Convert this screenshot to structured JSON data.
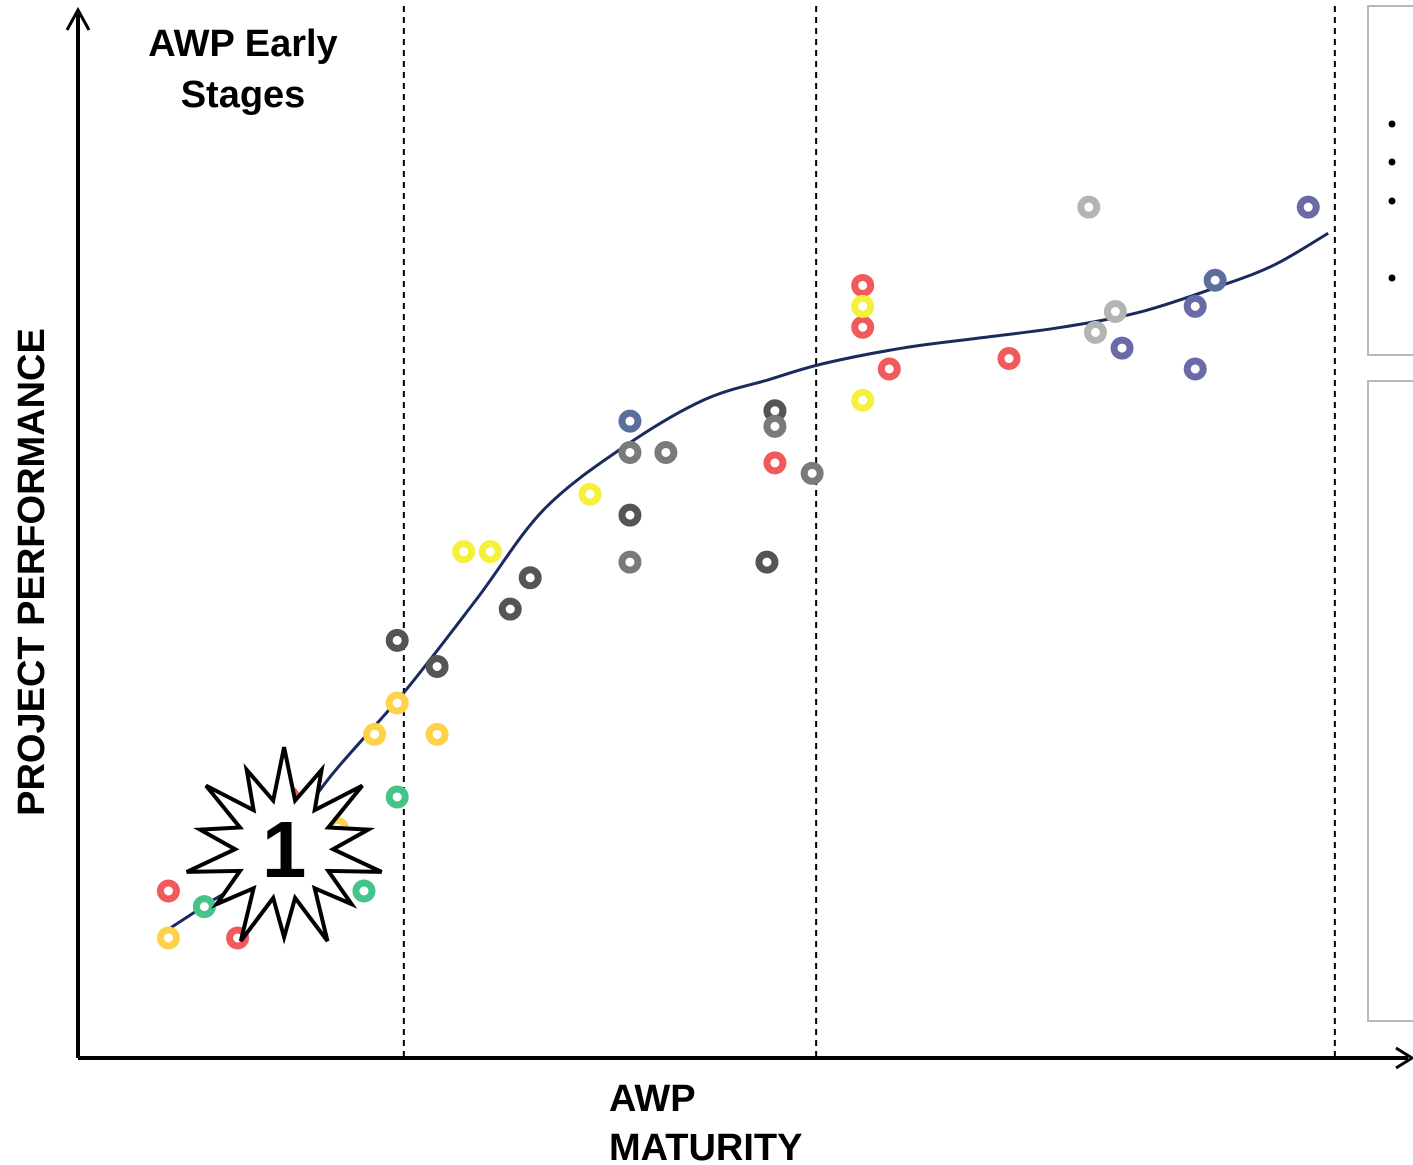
{
  "chart_data": {
    "type": "scatter",
    "title": "",
    "xlabel": "AWP MATURITY",
    "xlabel_lines": [
      "AWP",
      "MATURITY"
    ],
    "ylabel": "PROJECT PERFORMANCE",
    "xlim": [
      0,
      100
    ],
    "ylim": [
      0,
      100
    ],
    "grid": false,
    "ticks_shown": false,
    "stage_dividers_x": [
      24.5,
      55.5,
      94.5
    ],
    "annotations": [
      {
        "id": "early-stages",
        "text_lines": [
          "AWP Early",
          "Stages"
        ]
      },
      {
        "id": "burst",
        "text": "1",
        "at": {
          "x": 15.5,
          "y": 20
        }
      }
    ],
    "trend_line": {
      "color": "#1a2a5e",
      "points": [
        {
          "x": 7,
          "y": 12.5
        },
        {
          "x": 10,
          "y": 15
        },
        {
          "x": 14,
          "y": 18.5
        },
        {
          "x": 19,
          "y": 27
        },
        {
          "x": 24.5,
          "y": 35
        },
        {
          "x": 30,
          "y": 44
        },
        {
          "x": 35,
          "y": 52.5
        },
        {
          "x": 41,
          "y": 58.5
        },
        {
          "x": 47,
          "y": 63
        },
        {
          "x": 52,
          "y": 65
        },
        {
          "x": 56,
          "y": 66.5
        },
        {
          "x": 62,
          "y": 68
        },
        {
          "x": 68,
          "y": 69
        },
        {
          "x": 74,
          "y": 70
        },
        {
          "x": 80,
          "y": 71.5
        },
        {
          "x": 86,
          "y": 74
        },
        {
          "x": 90,
          "y": 76
        },
        {
          "x": 94,
          "y": 79
        }
      ]
    },
    "series": [
      {
        "color": "#f05a5a",
        "points": [
          {
            "x": 6.8,
            "y": 16
          },
          {
            "x": 12,
            "y": 11.5
          },
          {
            "x": 15.8,
            "y": 25
          },
          {
            "x": 52.4,
            "y": 57
          },
          {
            "x": 59,
            "y": 74
          },
          {
            "x": 59,
            "y": 70
          },
          {
            "x": 61,
            "y": 66
          },
          {
            "x": 70,
            "y": 67
          }
        ]
      },
      {
        "color": "#44c486",
        "points": [
          {
            "x": 9.5,
            "y": 14.5
          },
          {
            "x": 21.5,
            "y": 16
          },
          {
            "x": 24,
            "y": 25
          }
        ]
      },
      {
        "color": "#ffd24a",
        "points": [
          {
            "x": 6.8,
            "y": 11.5
          },
          {
            "x": 22.3,
            "y": 31
          },
          {
            "x": 24,
            "y": 34
          },
          {
            "x": 27,
            "y": 31
          },
          {
            "x": 19.5,
            "y": 22
          }
        ]
      },
      {
        "color": "#f5f03a",
        "points": [
          {
            "x": 29,
            "y": 48.5
          },
          {
            "x": 31,
            "y": 48.5
          },
          {
            "x": 38.5,
            "y": 54
          },
          {
            "x": 59,
            "y": 72
          },
          {
            "x": 59,
            "y": 63
          }
        ]
      },
      {
        "color": "#555555",
        "points": [
          {
            "x": 24,
            "y": 40
          },
          {
            "x": 27,
            "y": 37.5
          },
          {
            "x": 32.5,
            "y": 43
          },
          {
            "x": 34,
            "y": 46
          },
          {
            "x": 41.5,
            "y": 52
          },
          {
            "x": 51.8,
            "y": 47.5
          },
          {
            "x": 52.4,
            "y": 62
          }
        ]
      },
      {
        "color": "#7a7a7a",
        "points": [
          {
            "x": 41.5,
            "y": 58
          },
          {
            "x": 44.2,
            "y": 58
          },
          {
            "x": 41.5,
            "y": 47.5
          },
          {
            "x": 52.4,
            "y": 60.5
          },
          {
            "x": 55.2,
            "y": 56
          }
        ]
      },
      {
        "color": "#b4b4b4",
        "points": [
          {
            "x": 76,
            "y": 81.5
          },
          {
            "x": 78,
            "y": 71.5
          },
          {
            "x": 76.5,
            "y": 69.5
          }
        ]
      },
      {
        "color": "#6a6aa8",
        "points": [
          {
            "x": 92.5,
            "y": 81.5
          },
          {
            "x": 84,
            "y": 72
          },
          {
            "x": 78.5,
            "y": 68
          },
          {
            "x": 84,
            "y": 66
          }
        ]
      },
      {
        "color": "#5b6f9e",
        "points": [
          {
            "x": 41.5,
            "y": 61
          },
          {
            "x": 85.5,
            "y": 74.5
          }
        ]
      }
    ]
  }
}
